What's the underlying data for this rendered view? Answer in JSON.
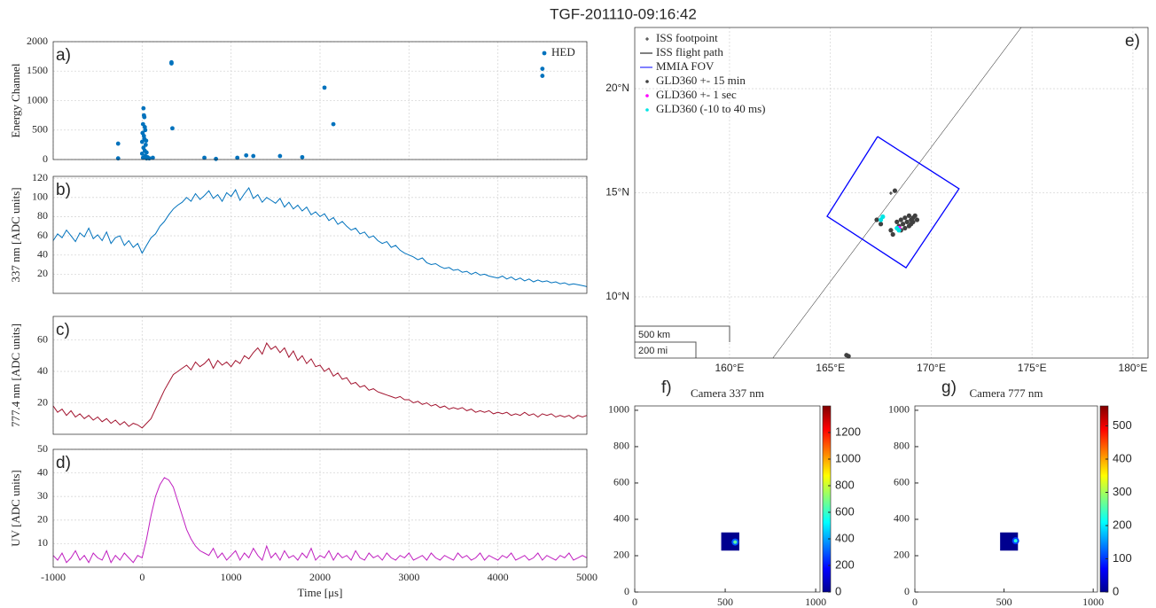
{
  "title": "TGF-201110-09:16:42",
  "chart_data": [
    {
      "type": "scatter",
      "panel": "a)",
      "ylabel": "Energy Channel",
      "grid": true,
      "legend": "top right",
      "xlim": [
        -1000,
        5000
      ],
      "xticks": [
        -1000,
        0,
        1000,
        2000,
        3000,
        4000,
        5000
      ],
      "ylim": [
        0,
        2000
      ],
      "yticks": [
        0,
        500,
        1000,
        1500,
        2000
      ],
      "series": [
        {
          "name": "HED",
          "color": "#0072bd",
          "x": [
            -270,
            -270,
            0,
            0,
            5,
            10,
            10,
            15,
            15,
            20,
            20,
            25,
            25,
            30,
            30,
            35,
            35,
            40,
            45,
            50,
            50,
            60,
            80,
            120,
            330,
            330,
            340,
            700,
            830,
            1070,
            1170,
            1250,
            1550,
            1800,
            2050,
            2150,
            4500,
            4500
          ],
          "values": [
            270,
            20,
            100,
            300,
            450,
            30,
            600,
            870,
            200,
            750,
            400,
            720,
            350,
            550,
            150,
            500,
            60,
            250,
            320,
            120,
            20,
            40,
            20,
            30,
            1650,
            1630,
            530,
            30,
            10,
            30,
            70,
            60,
            60,
            40,
            1220,
            600,
            1540,
            1420
          ]
        }
      ]
    },
    {
      "type": "line",
      "panel": "b)",
      "ylabel": "337 nm [ADC units]",
      "grid": true,
      "color": "#0072bd",
      "xlim": [
        -1000,
        5000
      ],
      "xticks": [
        -1000,
        0,
        1000,
        2000,
        3000,
        4000,
        5000
      ],
      "ylim": [
        0,
        122
      ],
      "yticks": [
        20,
        40,
        60,
        80,
        100,
        120
      ],
      "x": [
        -1000,
        -950,
        -900,
        -850,
        -800,
        -750,
        -700,
        -650,
        -600,
        -550,
        -500,
        -450,
        -400,
        -350,
        -300,
        -250,
        -200,
        -150,
        -100,
        -50,
        0,
        50,
        100,
        150,
        200,
        250,
        300,
        350,
        400,
        450,
        500,
        550,
        600,
        650,
        700,
        750,
        800,
        850,
        900,
        950,
        1000,
        1050,
        1100,
        1150,
        1200,
        1250,
        1300,
        1350,
        1400,
        1450,
        1500,
        1550,
        1600,
        1650,
        1700,
        1750,
        1800,
        1850,
        1900,
        1950,
        2000,
        2050,
        2100,
        2150,
        2200,
        2250,
        2300,
        2350,
        2400,
        2450,
        2500,
        2550,
        2600,
        2650,
        2700,
        2750,
        2800,
        2850,
        2900,
        2950,
        3000,
        3050,
        3100,
        3150,
        3200,
        3250,
        3300,
        3350,
        3400,
        3450,
        3500,
        3550,
        3600,
        3650,
        3700,
        3750,
        3800,
        3850,
        3900,
        3950,
        4000,
        4050,
        4100,
        4150,
        4200,
        4250,
        4300,
        4350,
        4400,
        4450,
        4500,
        4550,
        4600,
        4650,
        4700,
        4750,
        4800,
        4850,
        4900,
        4950,
        5000
      ],
      "values": [
        55,
        62,
        58,
        66,
        60,
        54,
        63,
        59,
        68,
        57,
        61,
        55,
        64,
        52,
        58,
        60,
        50,
        55,
        48,
        52,
        42,
        50,
        58,
        62,
        70,
        75,
        82,
        88,
        92,
        95,
        100,
        96,
        104,
        98,
        102,
        107,
        99,
        103,
        96,
        105,
        101,
        108,
        97,
        104,
        110,
        99,
        103,
        95,
        100,
        97,
        94,
        99,
        90,
        95,
        88,
        92,
        86,
        90,
        82,
        85,
        80,
        83,
        76,
        79,
        72,
        75,
        70,
        66,
        68,
        62,
        64,
        58,
        60,
        55,
        52,
        54,
        48,
        50,
        45,
        42,
        40,
        38,
        35,
        37,
        32,
        30,
        31,
        28,
        26,
        27,
        24,
        25,
        22,
        23,
        20,
        22,
        19,
        20,
        18,
        17,
        16,
        18,
        15,
        17,
        14,
        16,
        13,
        15,
        12,
        14,
        12,
        13,
        11,
        12,
        10,
        11,
        9,
        10,
        9,
        8,
        7
      ]
    },
    {
      "type": "line",
      "panel": "c)",
      "ylabel": "777.4 nm [ADC units]",
      "grid": true,
      "color": "#a2142f",
      "xlim": [
        -1000,
        5000
      ],
      "xticks": [
        -1000,
        0,
        1000,
        2000,
        3000,
        4000,
        5000
      ],
      "ylim": [
        0,
        75
      ],
      "yticks": [
        20,
        40,
        60
      ],
      "x": [
        -1000,
        -950,
        -900,
        -850,
        -800,
        -750,
        -700,
        -650,
        -600,
        -550,
        -500,
        -450,
        -400,
        -350,
        -300,
        -250,
        -200,
        -150,
        -100,
        -50,
        0,
        50,
        100,
        150,
        200,
        250,
        300,
        350,
        400,
        450,
        500,
        550,
        600,
        650,
        700,
        750,
        800,
        850,
        900,
        950,
        1000,
        1050,
        1100,
        1150,
        1200,
        1250,
        1300,
        1350,
        1400,
        1450,
        1500,
        1550,
        1600,
        1650,
        1700,
        1750,
        1800,
        1850,
        1900,
        1950,
        2000,
        2050,
        2100,
        2150,
        2200,
        2250,
        2300,
        2350,
        2400,
        2450,
        2500,
        2550,
        2600,
        2650,
        2700,
        2750,
        2800,
        2850,
        2900,
        2950,
        3000,
        3050,
        3100,
        3150,
        3200,
        3250,
        3300,
        3350,
        3400,
        3450,
        3500,
        3550,
        3600,
        3650,
        3700,
        3750,
        3800,
        3850,
        3900,
        3950,
        4000,
        4050,
        4100,
        4150,
        4200,
        4250,
        4300,
        4350,
        4400,
        4450,
        4500,
        4550,
        4600,
        4650,
        4700,
        4750,
        4800,
        4850,
        4900,
        4950,
        5000
      ],
      "values": [
        18,
        14,
        16,
        12,
        15,
        11,
        13,
        10,
        12,
        9,
        11,
        8,
        10,
        7,
        9,
        6,
        8,
        5,
        7,
        6,
        4,
        7,
        10,
        16,
        22,
        28,
        33,
        38,
        40,
        42,
        44,
        41,
        46,
        43,
        45,
        48,
        42,
        47,
        44,
        46,
        43,
        47,
        45,
        50,
        48,
        52,
        55,
        51,
        58,
        54,
        56,
        52,
        55,
        49,
        53,
        47,
        50,
        45,
        48,
        43,
        44,
        40,
        42,
        37,
        39,
        35,
        36,
        32,
        33,
        30,
        31,
        28,
        29,
        27,
        26,
        25,
        24,
        23,
        24,
        22,
        22,
        20,
        21,
        19,
        20,
        18,
        19,
        17,
        18,
        16,
        17,
        16,
        17,
        15,
        16,
        14,
        15,
        14,
        15,
        13,
        14,
        13,
        14,
        12,
        13,
        12,
        14,
        12,
        13,
        11,
        13,
        12,
        13,
        11,
        12,
        11,
        12,
        10,
        12,
        11,
        12
      ]
    },
    {
      "type": "line",
      "panel": "d)",
      "ylabel": "UV [ADC units]",
      "xlabel": "Time [μs]",
      "grid": true,
      "color": "#c020c0",
      "xlim": [
        -1000,
        5000
      ],
      "xticks": [
        -1000,
        0,
        1000,
        2000,
        3000,
        4000,
        5000
      ],
      "ylim": [
        0,
        50
      ],
      "yticks": [
        10,
        20,
        30,
        40,
        50
      ],
      "x": [
        -1000,
        -950,
        -900,
        -850,
        -800,
        -750,
        -700,
        -650,
        -600,
        -550,
        -500,
        -450,
        -400,
        -350,
        -300,
        -250,
        -200,
        -150,
        -100,
        -50,
        0,
        50,
        100,
        150,
        200,
        250,
        300,
        350,
        400,
        450,
        500,
        550,
        600,
        650,
        700,
        750,
        800,
        850,
        900,
        950,
        1000,
        1050,
        1100,
        1150,
        1200,
        1250,
        1300,
        1350,
        1400,
        1450,
        1500,
        1550,
        1600,
        1650,
        1700,
        1750,
        1800,
        1850,
        1900,
        1950,
        2000,
        2050,
        2100,
        2150,
        2200,
        2250,
        2300,
        2350,
        2400,
        2450,
        2500,
        2550,
        2600,
        2650,
        2700,
        2750,
        2800,
        2850,
        2900,
        2950,
        3000,
        3050,
        3100,
        3150,
        3200,
        3250,
        3300,
        3350,
        3400,
        3450,
        3500,
        3550,
        3600,
        3650,
        3700,
        3750,
        3800,
        3850,
        3900,
        3950,
        4000,
        4050,
        4100,
        4150,
        4200,
        4250,
        4300,
        4350,
        4400,
        4450,
        4500,
        4550,
        4600,
        4650,
        4700,
        4750,
        4800,
        4850,
        4900,
        4950,
        5000
      ],
      "values": [
        5,
        3,
        6,
        2,
        4,
        7,
        3,
        5,
        2,
        6,
        4,
        3,
        7,
        2,
        5,
        3,
        6,
        4,
        2,
        5,
        4,
        12,
        22,
        30,
        35,
        38,
        37,
        34,
        28,
        22,
        16,
        12,
        9,
        7,
        6,
        5,
        8,
        4,
        6,
        3,
        5,
        7,
        3,
        6,
        4,
        8,
        5,
        3,
        9,
        4,
        6,
        3,
        7,
        4,
        5,
        3,
        6,
        4,
        8,
        3,
        5,
        4,
        7,
        3,
        6,
        4,
        5,
        3,
        7,
        4,
        3,
        6,
        4,
        5,
        3,
        6,
        4,
        3,
        5,
        4,
        6,
        3,
        4,
        5,
        3,
        6,
        4,
        3,
        5,
        4,
        3,
        6,
        4,
        5,
        3,
        4,
        6,
        3,
        5,
        4,
        3,
        5,
        4,
        6,
        3,
        4,
        5,
        3,
        4,
        6,
        3,
        5,
        4,
        3,
        5,
        4,
        6,
        3,
        4,
        5,
        4
      ]
    },
    {
      "type": "map",
      "panel": "e)",
      "grid": true,
      "legend": "top left",
      "xlim": [
        155.3,
        180.75
      ],
      "xticks": [
        {
          "value": 160,
          "label": "160°E"
        },
        {
          "value": 165,
          "label": "165°E"
        },
        {
          "value": 170,
          "label": "170°E"
        },
        {
          "value": 175,
          "label": "175°E"
        },
        {
          "value": 180,
          "label": "180°E"
        }
      ],
      "ylim": [
        7.06,
        22.94
      ],
      "yticks": [
        {
          "value": 10,
          "label": "10°N"
        },
        {
          "value": 15,
          "label": "15°N"
        },
        {
          "value": 20,
          "label": "20°N"
        }
      ],
      "scale_bar": [
        "500 km",
        "200 mi"
      ],
      "series": [
        {
          "name": "ISS footpoint",
          "color": "#000000",
          "marker": "+",
          "x": [
            168.0
          ],
          "values": [
            14.98
          ]
        },
        {
          "name": "ISS flight path",
          "color": "#000000",
          "style": "line",
          "x": [
            162.15,
            174.46
          ],
          "values": [
            7.06,
            22.94
          ]
        },
        {
          "name": "MMIA FOV",
          "color": "#0000ff",
          "style": "line",
          "x": [
            167.34,
            171.38,
            168.75,
            164.84,
            167.34
          ],
          "values": [
            17.7,
            15.19,
            11.4,
            13.87,
            17.7
          ]
        },
        {
          "name": "GLD360 +- 15 min",
          "color": "#404040",
          "marker": "dot",
          "x": [
            168.3,
            168.5,
            168.7,
            168.9,
            169.0,
            169.1,
            169.2,
            169.3,
            168.6,
            168.8,
            169.0,
            168.4,
            168.9,
            169.1,
            168.7,
            168.5,
            167.3,
            167.5,
            168.1,
            168.0,
            165.8,
            165.9,
            168.2
          ],
          "values": [
            13.6,
            13.7,
            13.8,
            13.9,
            13.7,
            13.8,
            13.9,
            13.7,
            13.5,
            13.6,
            13.5,
            13.4,
            13.4,
            13.6,
            13.3,
            13.2,
            13.7,
            13.5,
            13.0,
            13.2,
            7.2,
            7.15,
            15.1
          ]
        },
        {
          "name": "GLD360 +- 1 sec",
          "color": "#ff00ff",
          "marker": "dot",
          "x": [
            168.4
          ],
          "values": [
            13.3
          ]
        },
        {
          "name": "GLD360 (-10 to 40 ms)",
          "color": "#00e5e5",
          "marker": "dot",
          "x": [
            167.5,
            167.6,
            168.3,
            168.4
          ],
          "values": [
            13.7,
            13.85,
            13.3,
            13.2
          ]
        }
      ]
    },
    {
      "type": "image",
      "panel": "f)",
      "title": "Camera 337 nm",
      "xlim": [
        0,
        1024
      ],
      "xticks": [
        0,
        500,
        1000
      ],
      "ylim": [
        0,
        1024
      ],
      "yticks": [
        0,
        200,
        400,
        600,
        800,
        1000
      ],
      "clim": [
        0,
        1400
      ],
      "cticks": [
        0,
        200,
        400,
        600,
        800,
        1000,
        1200
      ],
      "roi_x": [
        478,
        578
      ],
      "roi_y": [
        228,
        328
      ],
      "spot": [
        555,
        275
      ],
      "peak": 650
    },
    {
      "type": "image",
      "panel": "g)",
      "title": "Camera 777 nm",
      "xlim": [
        0,
        1024
      ],
      "xticks": [
        0,
        500,
        1000
      ],
      "ylim": [
        0,
        1024
      ],
      "yticks": [
        0,
        200,
        400,
        600,
        800,
        1000
      ],
      "clim": [
        0,
        560
      ],
      "cticks": [
        0,
        100,
        200,
        300,
        400,
        500
      ],
      "roi_x": [
        478,
        578
      ],
      "roi_y": [
        228,
        328
      ],
      "spot": [
        565,
        282
      ],
      "peak": 230
    }
  ]
}
